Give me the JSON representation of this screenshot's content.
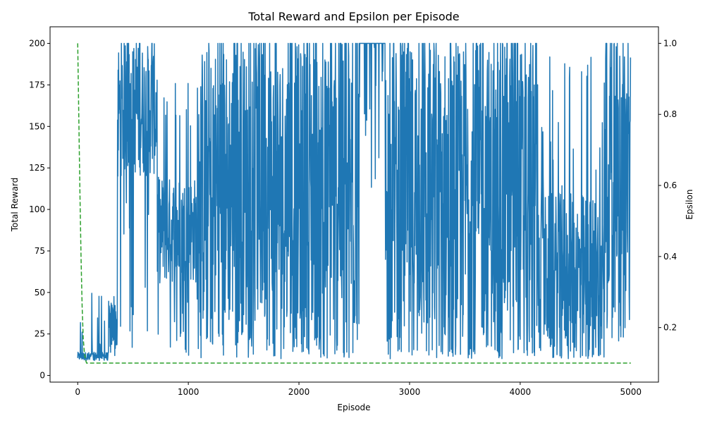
{
  "chart_data": {
    "type": "line",
    "title": "Total Reward and Epsilon per Episode",
    "xlabel": "Episode",
    "ylabel_left": "Total Reward",
    "ylabel_right": "Epsilon",
    "xlim": [
      -250,
      5250
    ],
    "ylim_left": [
      -4,
      210
    ],
    "ylim_right": [
      0.0465,
      1.0465
    ],
    "x_ticks": [
      0,
      1000,
      2000,
      3000,
      4000,
      5000
    ],
    "y_ticks_left": [
      0,
      25,
      50,
      75,
      100,
      125,
      150,
      175,
      200
    ],
    "y_ticks_right": [
      0.2,
      0.4,
      0.6,
      0.8,
      1.0
    ],
    "grid": false,
    "colors": {
      "reward": "#1f77b4",
      "epsilon": "#2ca02c",
      "axis": "#000000"
    },
    "series": [
      {
        "axis": "left",
        "style": "solid",
        "segments": [
          {
            "x": [
              0,
              280
            ],
            "min": 9,
            "max": 52,
            "typical_low": 9,
            "typical_high": 14
          },
          {
            "x": [
              280,
              360
            ],
            "min": 10,
            "max": 75,
            "typical_low": 15,
            "typical_high": 45
          },
          {
            "x": [
              360,
              720
            ],
            "min": 12,
            "max": 200,
            "typical_low": 120,
            "typical_high": 200
          },
          {
            "x": [
              720,
              1100
            ],
            "min": 11,
            "max": 190,
            "typical_low": 55,
            "typical_high": 120
          },
          {
            "x": [
              1100,
              1700
            ],
            "min": 10,
            "max": 200,
            "typical_low": 25,
            "typical_high": 200
          },
          {
            "x": [
              1700,
              2550
            ],
            "min": 10,
            "max": 200,
            "typical_low": 15,
            "typical_high": 200
          },
          {
            "x": [
              2550,
              2780
            ],
            "min": 113,
            "max": 200,
            "typical_low": 200,
            "typical_high": 200
          },
          {
            "x": [
              2780,
              4160
            ],
            "min": 10,
            "max": 200,
            "typical_low": 15,
            "typical_high": 200
          },
          {
            "x": [
              4160,
              4760
            ],
            "min": 10,
            "max": 194,
            "typical_low": 12,
            "typical_high": 110
          },
          {
            "x": [
              4760,
              5000
            ],
            "min": 20,
            "max": 200,
            "typical_low": 40,
            "typical_high": 200
          }
        ]
      },
      {
        "axis": "right",
        "style": "dashed",
        "x": [
          0,
          10,
          20,
          30,
          40,
          50,
          60,
          70,
          80,
          100,
          5000
        ],
        "values": [
          1.0,
          0.79,
          0.58,
          0.4,
          0.26,
          0.17,
          0.13,
          0.11,
          0.1,
          0.1,
          0.1
        ]
      }
    ]
  }
}
